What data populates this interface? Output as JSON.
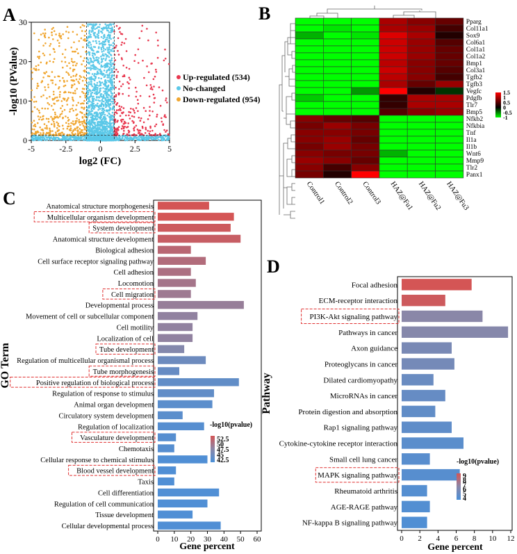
{
  "panel_labels": [
    "A",
    "B",
    "C",
    "D"
  ],
  "colors": {
    "up": "#e8384f",
    "nochange": "#5bc8e8",
    "down": "#f0a630",
    "hm_low": "#00ff00",
    "hm_mid": "#000000",
    "hm_high": "#ff0000",
    "grad_high": "#d45555",
    "grad_mid": "#8a87a8",
    "grad_low": "#4a90d9"
  },
  "chart_data": [
    {
      "panel": "A",
      "type": "scatter",
      "title": "",
      "xlabel": "log2 (FC)",
      "ylabel": "-log10 (PValue)",
      "xlim": [
        -5,
        5
      ],
      "ylim": [
        0,
        30
      ],
      "xticks": [
        "-5",
        "-2.5",
        "0",
        "2.5",
        "5"
      ],
      "yticks": [
        "0",
        "10",
        "20",
        "30"
      ],
      "thresholds": {
        "fc": [
          -1,
          1
        ],
        "p": 1.3
      },
      "legend": [
        {
          "label": "Up-regulated (534)",
          "key": "up",
          "count": 534
        },
        {
          "label": "No-changed",
          "key": "nochange"
        },
        {
          "label": "Down-regulated (954)",
          "key": "down",
          "count": 954
        }
      ]
    },
    {
      "panel": "B",
      "type": "heatmap",
      "columns": [
        "Control1",
        "Control2",
        "Control3",
        "HAZ@Fu1",
        "HAZ@Fu2",
        "HAZ@Fu3"
      ],
      "rows": [
        "Pparg",
        "Col11a1",
        "Sox9",
        "Col6a1",
        "Col1a1",
        "Col1a2",
        "Bmp1",
        "Col3a1",
        "Tgfb2",
        "Tgfb3",
        "Vegfc",
        "Pdgfb",
        "Tlr7",
        "Bmp5",
        "Nfkb2",
        "Nfkbia",
        "Tnf",
        "Il1a",
        "Il1b",
        "Wnt6",
        "Mmp9",
        "Tlr2",
        "Panx1"
      ],
      "values": [
        [
          -1.0,
          -1.0,
          -1.0,
          1.0,
          0.8,
          0.6
        ],
        [
          -1.0,
          -0.9,
          -1.0,
          1.0,
          0.9,
          0.4
        ],
        [
          -0.7,
          -1.0,
          -0.9,
          1.3,
          1.0,
          0.2
        ],
        [
          -1.0,
          -1.0,
          -1.0,
          1.2,
          0.9,
          0.5
        ],
        [
          -1.0,
          -1.0,
          -1.0,
          1.2,
          0.9,
          0.6
        ],
        [
          -1.0,
          -1.0,
          -1.0,
          1.2,
          0.9,
          0.6
        ],
        [
          -1.0,
          -1.0,
          -1.0,
          1.1,
          0.8,
          0.6
        ],
        [
          -1.0,
          -1.0,
          -1.0,
          1.2,
          0.8,
          0.5
        ],
        [
          -1.0,
          -1.0,
          -1.0,
          1.1,
          0.8,
          0.4
        ],
        [
          -1.0,
          -1.0,
          -1.0,
          1.0,
          0.6,
          0.9
        ],
        [
          -1.0,
          -1.0,
          -0.6,
          1.5,
          0.2,
          -0.2
        ],
        [
          -0.8,
          -1.0,
          -1.0,
          0.3,
          1.0,
          1.0
        ],
        [
          -1.0,
          -1.0,
          -1.0,
          0.3,
          1.0,
          1.0
        ],
        [
          -1.0,
          -1.0,
          -1.0,
          0.5,
          0.8,
          0.9
        ],
        [
          0.8,
          0.6,
          0.5,
          -1.0,
          -1.0,
          -1.0
        ],
        [
          0.7,
          0.9,
          0.7,
          -1.0,
          -1.0,
          -1.0
        ],
        [
          0.8,
          0.8,
          0.7,
          -1.0,
          -1.0,
          -1.0
        ],
        [
          0.8,
          0.9,
          0.6,
          -1.0,
          -1.0,
          -1.0
        ],
        [
          0.7,
          0.9,
          0.7,
          -1.0,
          -1.0,
          -1.0
        ],
        [
          0.8,
          0.7,
          0.7,
          -0.7,
          -1.0,
          -1.0
        ],
        [
          0.9,
          0.8,
          0.6,
          -1.0,
          -1.0,
          -1.0
        ],
        [
          0.8,
          0.4,
          0.8,
          -1.0,
          -1.0,
          -1.0
        ],
        [
          0.7,
          0.2,
          1.5,
          -1.0,
          -1.0,
          -1.0
        ]
      ],
      "legend_ticks": [
        "1.5",
        "1",
        "0.5",
        "0",
        "-0.5",
        "-1"
      ],
      "vmin": -1,
      "vmax": 1.5
    },
    {
      "panel": "C",
      "type": "bar",
      "orientation": "horizontal",
      "xlabel": "Gene percent",
      "ylabel": "GO Term",
      "xlim": [
        0,
        60
      ],
      "xticks": [
        "0",
        "10",
        "20",
        "30",
        "40",
        "50",
        "60"
      ],
      "legend_title": "-log10(pvalue)",
      "legend_ticks": [
        "52.5",
        "50",
        "47.5",
        "45",
        "42.5"
      ],
      "color_range": [
        42,
        53
      ],
      "categories": [
        "Anatomical structure morphogenesis",
        "Multicellular organism development",
        "System development",
        "Anatomical structure development",
        "Biological adhesion",
        "Cell surface receptor signaling pathway",
        "Cell adhesion",
        "Locomotion",
        "Cell migration",
        "Developmental process",
        "Movement of cell or subcellular component",
        "Cell motility",
        "Localization of cell",
        "Tube development",
        "Regulation of multicellular organismal process",
        "Tube morphogenesis",
        "Positive regulation of biological process",
        "Regulation of response to stimulus",
        "Animal organ development",
        "Circulatory system development",
        "Regulation of localization",
        "Vasculature development",
        "Chemotaxis",
        "Cellular response to chemical stimulus",
        "Blood vessel development",
        "Taxis",
        "Cell differentiation",
        "Regulation of cell communication",
        "Tissue development",
        "Cellular developmental process"
      ],
      "values": [
        31,
        46,
        44,
        50,
        20,
        29,
        20,
        23,
        20,
        52,
        24,
        21,
        21,
        16,
        29,
        13,
        49,
        34,
        33,
        15,
        28,
        11,
        10,
        30,
        11,
        10,
        37,
        30,
        21,
        38
      ],
      "color_values": [
        53,
        53,
        52.5,
        52,
        51,
        50.5,
        50,
        49.5,
        49,
        48.5,
        48,
        48,
        48,
        47,
        45,
        44.5,
        44,
        44,
        43.5,
        43.5,
        43,
        43,
        43,
        42.5,
        42.5,
        42.5,
        42.5,
        42.5,
        42.5,
        42.5
      ],
      "highlighted": [
        1,
        2,
        8,
        13,
        15,
        16,
        21,
        24
      ]
    },
    {
      "panel": "D",
      "type": "bar",
      "orientation": "horizontal",
      "xlabel": "Gene percent",
      "ylabel": "Pathway",
      "xlim": [
        0,
        12
      ],
      "xticks": [
        "0",
        "2",
        "4",
        "6",
        "8",
        "10",
        "12"
      ],
      "legend_title": "-log10(pvalue)",
      "legend_ticks": [
        "9",
        "8",
        "7",
        "6",
        "5",
        "4"
      ],
      "color_range": [
        3.5,
        9.5
      ],
      "categories": [
        "Focal adhesion",
        "ECM-receptor interaction",
        "PI3K-Akt signaling pathway",
        "Pathways in cancer",
        "Axon guidance",
        "Proteoglycans in cancer",
        "Dilated cardiomyopathy",
        "MicroRNAs in cancer",
        "Protein digestion and absorption",
        "Rap1 signaling pathway",
        "Cytokine-cytokine receptor interaction",
        "Small cell lung cancer",
        "MAPK signaling pathway",
        "Rheumatoid arthritis",
        "AGE-RAGE pathway",
        "NF-kappa B signaling pathway"
      ],
      "values": [
        7.7,
        4.8,
        8.9,
        11.7,
        5.5,
        5.8,
        3.5,
        4.8,
        3.7,
        5.5,
        6.8,
        3.1,
        6.4,
        2.8,
        3.1,
        2.8
      ],
      "color_values": [
        9.5,
        9.2,
        6.5,
        6.3,
        5.7,
        5.5,
        5.0,
        4.8,
        4.6,
        4.5,
        4.3,
        4.2,
        4.1,
        4.0,
        3.9,
        3.8
      ],
      "highlighted": [
        2,
        12
      ]
    }
  ]
}
